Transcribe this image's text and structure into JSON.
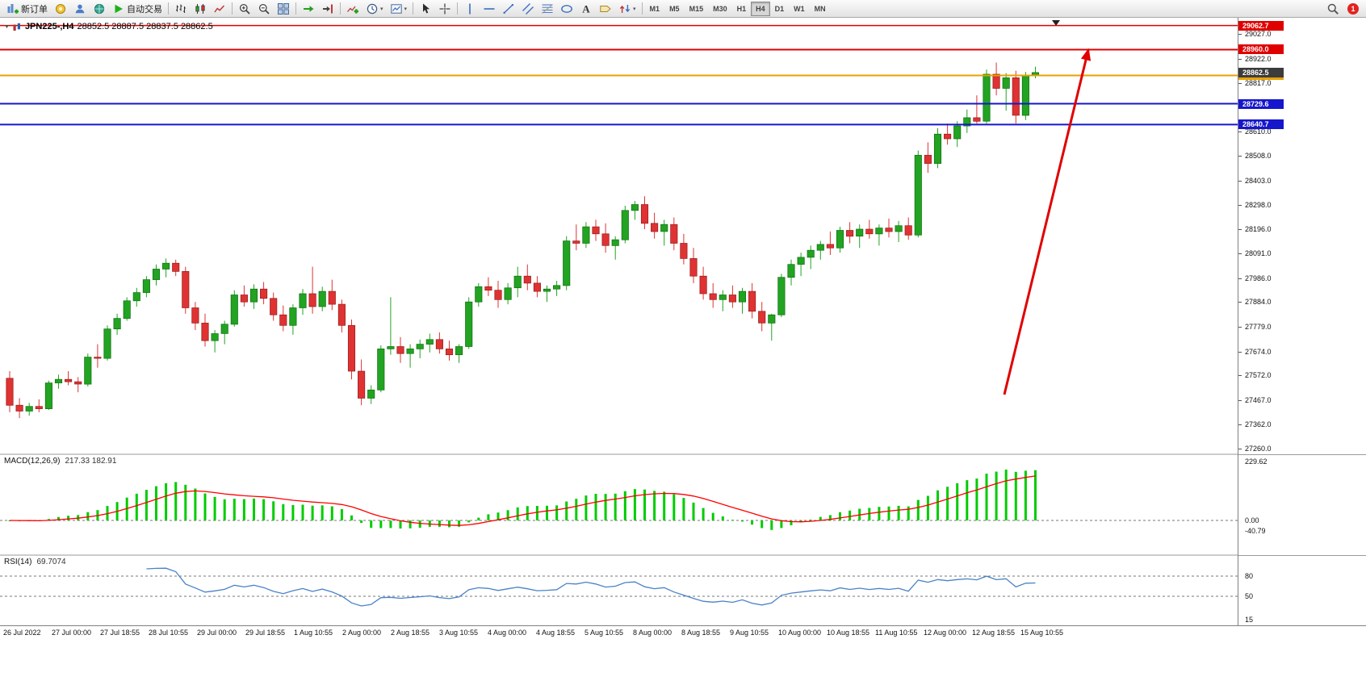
{
  "toolbar": {
    "items": [
      {
        "type": "button",
        "name": "new-order-button",
        "icon": "new-order",
        "label": "新订单"
      },
      {
        "type": "button",
        "name": "metaeditor-button",
        "icon": "editor"
      },
      {
        "type": "button",
        "name": "community-button",
        "icon": "person"
      },
      {
        "type": "button",
        "name": "market-button",
        "icon": "globe"
      },
      {
        "type": "button",
        "name": "autotrading-button",
        "icon": "play",
        "label": "自动交易"
      },
      {
        "type": "sep"
      },
      {
        "type": "button",
        "name": "bar-chart-button",
        "icon": "bars"
      },
      {
        "type": "button",
        "name": "candlestick-chart-button",
        "icon": "candles"
      },
      {
        "type": "button",
        "name": "line-chart-button",
        "icon": "linechart"
      },
      {
        "type": "sep"
      },
      {
        "type": "button",
        "name": "zoom-in-button",
        "icon": "zoom-in"
      },
      {
        "type": "button",
        "name": "zoom-out-button",
        "icon": "zoom-out"
      },
      {
        "type": "button",
        "name": "tile-windows-button",
        "icon": "tiles"
      },
      {
        "type": "sep"
      },
      {
        "type": "button",
        "name": "auto-scroll-button",
        "icon": "autoscroll"
      },
      {
        "type": "button",
        "name": "chart-shift-button",
        "icon": "shift"
      },
      {
        "type": "sep"
      },
      {
        "type": "button",
        "name": "indicators-button",
        "icon": "indicators"
      },
      {
        "type": "button",
        "name": "periods-button",
        "icon": "clock",
        "caret": true
      },
      {
        "type": "button",
        "name": "templates-button",
        "icon": "template",
        "caret": true
      },
      {
        "type": "sep"
      },
      {
        "type": "button",
        "name": "cursor-button",
        "icon": "cursor"
      },
      {
        "type": "button",
        "name": "crosshair-button",
        "icon": "crosshair"
      },
      {
        "type": "sep"
      },
      {
        "type": "button",
        "name": "vertical-line-button",
        "icon": "vline"
      },
      {
        "type": "button",
        "name": "horizontal-line-button",
        "icon": "hline"
      },
      {
        "type": "button",
        "name": "trendline-button",
        "icon": "trendline"
      },
      {
        "type": "button",
        "name": "channel-button",
        "icon": "channel"
      },
      {
        "type": "button",
        "name": "fibonacci-button",
        "icon": "fibo"
      },
      {
        "type": "button",
        "name": "shapes-button",
        "icon": "shapes"
      },
      {
        "type": "button",
        "name": "text-button",
        "icon": "text"
      },
      {
        "type": "button",
        "name": "label-button",
        "icon": "label"
      },
      {
        "type": "button",
        "name": "arrows-button",
        "icon": "arrows",
        "caret": true
      },
      {
        "type": "sep"
      },
      {
        "type": "tf",
        "label": "M1"
      },
      {
        "type": "tf",
        "label": "M5"
      },
      {
        "type": "tf",
        "label": "M15"
      },
      {
        "type": "tf",
        "label": "M30"
      },
      {
        "type": "tf",
        "label": "H1"
      },
      {
        "type": "tf",
        "label": "H4",
        "active": true
      },
      {
        "type": "tf",
        "label": "D1"
      },
      {
        "type": "tf",
        "label": "W1"
      },
      {
        "type": "tf",
        "label": "MN"
      }
    ],
    "right": [
      {
        "type": "button",
        "name": "search-button",
        "icon": "search"
      },
      {
        "type": "badge",
        "name": "notification-badge",
        "label": "1"
      }
    ]
  },
  "chart": {
    "symbol_period": "JPN225-,H4",
    "ohlc": "28852.5 28887.5 28837.5 28862.5",
    "current_price": 28862.5,
    "price_ticks": [
      29027.0,
      28922.0,
      28817.0,
      28610.0,
      28508.0,
      28403.0,
      28298.0,
      28196.0,
      28091.0,
      27986.0,
      27884.0,
      27779.0,
      27674.0,
      27572.0,
      27467.0,
      27362.0,
      27260.0
    ],
    "hlines": [
      {
        "name": "resistance-line-upper",
        "price": 29062.7,
        "color": "#e00000",
        "width": 1.5
      },
      {
        "name": "resistance-line",
        "price": 28960.0,
        "color": "#e00000",
        "width": 2
      },
      {
        "name": "gold-line",
        "price": 28850.0,
        "color": "#e8a200",
        "width": 2
      },
      {
        "name": "support-line-upper",
        "price": 28729.6,
        "color": "#1616cc",
        "width": 2
      },
      {
        "name": "support-line-lower",
        "price": 28640.7,
        "color": "#1616cc",
        "width": 2
      }
    ],
    "time_labels": [
      "26 Jul 2022",
      "27 Jul 00:00",
      "27 Jul 18:55",
      "28 Jul 10:55",
      "29 Jul 00:00",
      "29 Jul 18:55",
      "1 Aug 10:55",
      "2 Aug 00:00",
      "2 Aug 18:55",
      "3 Aug 10:55",
      "4 Aug 00:00",
      "4 Aug 18:55",
      "5 Aug 10:55",
      "8 Aug 00:00",
      "8 Aug 18:55",
      "9 Aug 10:55",
      "10 Aug 00:00",
      "10 Aug 18:55",
      "11 Aug 10:55",
      "12 Aug 00:00",
      "12 Aug 18:55",
      "15 Aug 10:55"
    ]
  },
  "chart_data": {
    "type": "candlestick",
    "symbol": "JPN225-",
    "timeframe": "H4",
    "ohlc": [
      [
        27560,
        27590,
        27415,
        27445
      ],
      [
        27445,
        27475,
        27390,
        27420
      ],
      [
        27420,
        27455,
        27400,
        27440
      ],
      [
        27440,
        27470,
        27415,
        27430
      ],
      [
        27430,
        27550,
        27425,
        27540
      ],
      [
        27540,
        27575,
        27515,
        27555
      ],
      [
        27555,
        27590,
        27530,
        27545
      ],
      [
        27545,
        27565,
        27500,
        27535
      ],
      [
        27535,
        27665,
        27525,
        27650
      ],
      [
        27650,
        27705,
        27605,
        27645
      ],
      [
        27645,
        27785,
        27635,
        27770
      ],
      [
        27770,
        27835,
        27745,
        27815
      ],
      [
        27815,
        27905,
        27805,
        27890
      ],
      [
        27890,
        27945,
        27865,
        27925
      ],
      [
        27925,
        27995,
        27905,
        27980
      ],
      [
        27980,
        28045,
        27955,
        28025
      ],
      [
        28025,
        28070,
        27990,
        28050
      ],
      [
        28050,
        28065,
        27995,
        28015
      ],
      [
        28015,
        28035,
        27835,
        27860
      ],
      [
        27860,
        27885,
        27765,
        27795
      ],
      [
        27795,
        27835,
        27695,
        27720
      ],
      [
        27720,
        27765,
        27670,
        27750
      ],
      [
        27750,
        27805,
        27705,
        27790
      ],
      [
        27790,
        27935,
        27780,
        27915
      ],
      [
        27915,
        27955,
        27865,
        27885
      ],
      [
        27885,
        27960,
        27855,
        27940
      ],
      [
        27940,
        27970,
        27875,
        27900
      ],
      [
        27900,
        27925,
        27805,
        27830
      ],
      [
        27830,
        27870,
        27760,
        27785
      ],
      [
        27785,
        27875,
        27745,
        27860
      ],
      [
        27860,
        27940,
        27830,
        27920
      ],
      [
        27920,
        28035,
        27835,
        27865
      ],
      [
        27865,
        27950,
        27845,
        27930
      ],
      [
        27930,
        27980,
        27850,
        27875
      ],
      [
        27875,
        27895,
        27755,
        27785
      ],
      [
        27785,
        27810,
        27555,
        27590
      ],
      [
        27590,
        27640,
        27445,
        27475
      ],
      [
        27475,
        27530,
        27450,
        27510
      ],
      [
        27510,
        27700,
        27500,
        27685
      ],
      [
        27685,
        27905,
        27660,
        27695
      ],
      [
        27695,
        27735,
        27625,
        27665
      ],
      [
        27665,
        27705,
        27605,
        27685
      ],
      [
        27685,
        27725,
        27645,
        27705
      ],
      [
        27705,
        27750,
        27670,
        27725
      ],
      [
        27725,
        27755,
        27665,
        27685
      ],
      [
        27685,
        27720,
        27635,
        27660
      ],
      [
        27660,
        27705,
        27625,
        27695
      ],
      [
        27695,
        27905,
        27685,
        27885
      ],
      [
        27885,
        27965,
        27865,
        27950
      ],
      [
        27950,
        27990,
        27910,
        27935
      ],
      [
        27935,
        27975,
        27860,
        27895
      ],
      [
        27895,
        27965,
        27875,
        27945
      ],
      [
        27945,
        28035,
        27905,
        27995
      ],
      [
        27995,
        28045,
        27935,
        27965
      ],
      [
        27965,
        27995,
        27905,
        27930
      ],
      [
        27930,
        27955,
        27885,
        27940
      ],
      [
        27940,
        27975,
        27910,
        27955
      ],
      [
        27955,
        28165,
        27935,
        28145
      ],
      [
        28145,
        28215,
        28105,
        28135
      ],
      [
        28135,
        28225,
        28115,
        28205
      ],
      [
        28205,
        28235,
        28145,
        28175
      ],
      [
        28175,
        28220,
        28095,
        28125
      ],
      [
        28125,
        28165,
        28065,
        28150
      ],
      [
        28150,
        28295,
        28135,
        28275
      ],
      [
        28275,
        28315,
        28235,
        28300
      ],
      [
        28300,
        28335,
        28195,
        28220
      ],
      [
        28220,
        28265,
        28155,
        28185
      ],
      [
        28185,
        28235,
        28125,
        28215
      ],
      [
        28215,
        28245,
        28105,
        28135
      ],
      [
        28135,
        28175,
        28045,
        28070
      ],
      [
        28070,
        28115,
        27965,
        27995
      ],
      [
        27995,
        28035,
        27895,
        27920
      ],
      [
        27920,
        27965,
        27860,
        27895
      ],
      [
        27895,
        27935,
        27845,
        27915
      ],
      [
        27915,
        27955,
        27860,
        27885
      ],
      [
        27885,
        27945,
        27835,
        27930
      ],
      [
        27930,
        27965,
        27815,
        27845
      ],
      [
        27845,
        27885,
        27760,
        27795
      ],
      [
        27795,
        27835,
        27720,
        27830
      ],
      [
        27830,
        28005,
        27820,
        27990
      ],
      [
        27990,
        28065,
        27955,
        28045
      ],
      [
        28045,
        28095,
        27995,
        28075
      ],
      [
        28075,
        28125,
        28025,
        28105
      ],
      [
        28105,
        28145,
        28065,
        28130
      ],
      [
        28130,
        28185,
        28085,
        28115
      ],
      [
        28115,
        28205,
        28095,
        28190
      ],
      [
        28190,
        28225,
        28135,
        28165
      ],
      [
        28165,
        28215,
        28115,
        28195
      ],
      [
        28195,
        28235,
        28155,
        28175
      ],
      [
        28175,
        28215,
        28125,
        28200
      ],
      [
        28200,
        28240,
        28160,
        28185
      ],
      [
        28185,
        28230,
        28140,
        28210
      ],
      [
        28210,
        28245,
        28150,
        28170
      ],
      [
        28170,
        28530,
        28160,
        28510
      ],
      [
        28510,
        28565,
        28435,
        28475
      ],
      [
        28475,
        28625,
        28455,
        28600
      ],
      [
        28600,
        28645,
        28555,
        28580
      ],
      [
        28580,
        28655,
        28545,
        28635
      ],
      [
        28635,
        28705,
        28605,
        28670
      ],
      [
        28670,
        28765,
        28645,
        28655
      ],
      [
        28655,
        28875,
        28645,
        28855
      ],
      [
        28855,
        28905,
        28765,
        28795
      ],
      [
        28795,
        28860,
        28700,
        28840
      ],
      [
        28840,
        28870,
        28645,
        28680
      ],
      [
        28680,
        28865,
        28660,
        28850
      ],
      [
        28852.5,
        28887.5,
        28837.5,
        28862.5
      ]
    ],
    "indicators": [
      {
        "name": "MACD",
        "params": [
          12,
          26,
          9
        ],
        "display": "MACD(12,26,9)",
        "values_text": "217.33 182.91",
        "scale_ticks": [
          229.62,
          0,
          -40.79
        ]
      },
      {
        "name": "RSI",
        "params": [
          14
        ],
        "display": "RSI(14)",
        "value_text": "69.7074",
        "scale_ticks": [
          80,
          50,
          15
        ]
      }
    ]
  },
  "colors": {
    "bull": "#22a322",
    "bear": "#e03232",
    "macd_hist": "#00cc00",
    "macd_signal": "#ff0000",
    "rsi_line": "#4a82c8",
    "red_line": "#e00000",
    "orange_line": "#e8a200",
    "blue_line": "#1616cc"
  }
}
